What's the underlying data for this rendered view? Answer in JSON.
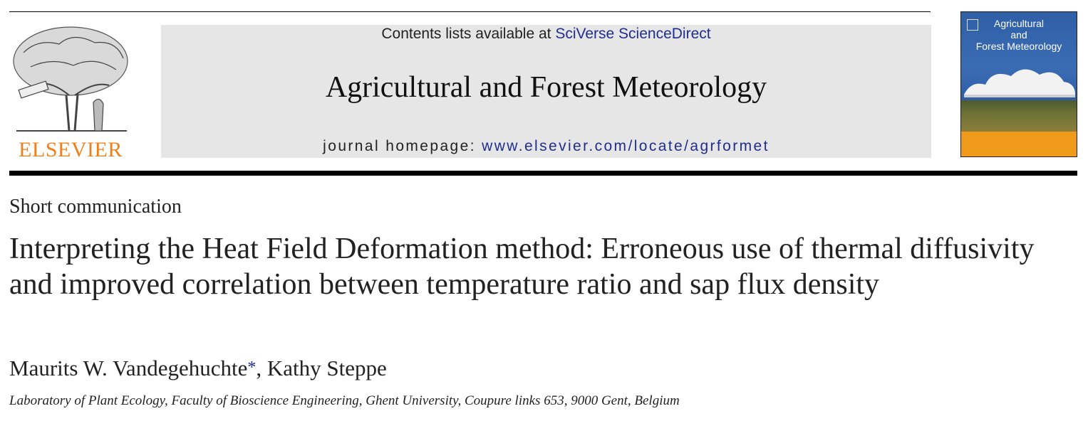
{
  "header": {
    "publisher_logo_text": "ELSEVIER",
    "contents_prefix": "Contents lists available at ",
    "contents_link": "SciVerse ScienceDirect",
    "journal_title": "Agricultural and Forest Meteorology",
    "homepage_prefix": "journal homepage: ",
    "homepage_link": "www.elsevier.com/locate/agrformet",
    "cover_title_line1": "Agricultural",
    "cover_title_line2": "and",
    "cover_title_line3": "Forest Meteorology"
  },
  "article": {
    "type": "Short communication",
    "title": "Interpreting the Heat Field Deformation method: Erroneous use of thermal diffusivity and improved correlation between temperature ratio and sap flux density",
    "author1": "Maurits W. Vandegehuchte",
    "author1_mark": "*",
    "author_sep": ", ",
    "author2": "Kathy Steppe",
    "affiliation": "Laboratory of Plant Ecology, Faculty of Bioscience Engineering, Ghent University, Coupure links 653, 9000 Gent, Belgium"
  },
  "colors": {
    "logo_orange": "#f07f1a",
    "link_blue": "#1f2e8c",
    "banner_gray": "#e6e6e6"
  }
}
